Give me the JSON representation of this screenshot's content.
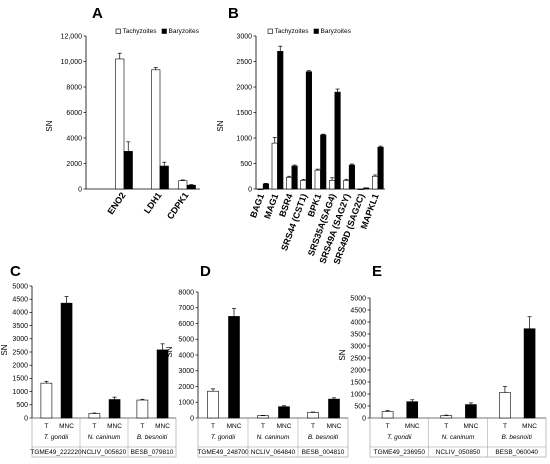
{
  "legend": {
    "tachyzoites": "Tachyzoites",
    "baryzoites": "Baryzoites"
  },
  "chart_data": [
    {
      "id": "A",
      "type": "bar",
      "panel": "A",
      "ylabel": "SN",
      "ylim": [
        0,
        12000
      ],
      "yticks": [
        0,
        2000,
        4000,
        6000,
        8000,
        10000,
        12000
      ],
      "ytick_labels": [
        "0",
        "2000",
        "4000",
        "6000",
        "8000",
        "10,000",
        "12,000"
      ],
      "categories": [
        "ENO2",
        "LDH1",
        "CDPK1"
      ],
      "legend": "top-right",
      "series": [
        {
          "name": "Tachyzoites",
          "values": [
            10200,
            9350,
            650
          ],
          "errors": [
            450,
            180,
            60
          ]
        },
        {
          "name": "Baryzoites",
          "values": [
            2950,
            1800,
            300
          ],
          "errors": [
            750,
            300,
            50
          ]
        }
      ]
    },
    {
      "id": "B",
      "type": "bar",
      "panel": "B",
      "ylabel": "SN",
      "ylim": [
        0,
        3000
      ],
      "yticks": [
        0,
        500,
        1000,
        1500,
        2000,
        2500,
        3000
      ],
      "ytick_labels": [
        "0",
        "500",
        "1000",
        "1500",
        "2000",
        "2500",
        "3000"
      ],
      "categories": [
        "BAG1",
        "MAG1",
        "BSR4",
        "SRS44 (CST1)",
        "BPK1",
        "SRS35A(SAG4)",
        "SRS49A (SAG2Y)",
        "SRS49D (SAG2C)",
        "MAPKL1"
      ],
      "legend": "top-left",
      "series": [
        {
          "name": "Tachyzoites",
          "values": [
            0,
            900,
            230,
            170,
            370,
            170,
            170,
            0,
            250
          ],
          "errors": [
            0,
            110,
            20,
            20,
            20,
            50,
            20,
            0,
            25
          ]
        },
        {
          "name": "Baryzoites",
          "values": [
            100,
            2700,
            450,
            2300,
            1060,
            1900,
            470,
            20,
            820
          ],
          "errors": [
            10,
            100,
            20,
            20,
            15,
            60,
            20,
            3,
            20
          ]
        }
      ]
    },
    {
      "id": "C",
      "type": "bar",
      "panel": "C",
      "ylabel": "SN",
      "ylim": [
        0,
        5000
      ],
      "yticks": [
        0,
        500,
        1000,
        1500,
        2000,
        2500,
        3000,
        3500,
        4000,
        4500,
        5000
      ],
      "ytick_labels": [
        "0",
        "500",
        "1000",
        "1500",
        "2000",
        "2500",
        "3000",
        "3500",
        "4000",
        "4500",
        "5000"
      ],
      "bar_labels": [
        "T",
        "MNC"
      ],
      "groups": [
        {
          "species": "T. gondii",
          "gene": "TGME49_222220",
          "values": [
            1320,
            4350
          ],
          "errors": [
            70,
            250
          ]
        },
        {
          "species": "N. caninum",
          "gene": "NCLIV_005620",
          "values": [
            170,
            700
          ],
          "errors": [
            20,
            90
          ]
        },
        {
          "species": "B. besnoiti",
          "gene": "BESB_079810",
          "values": [
            680,
            2580
          ],
          "errors": [
            30,
            230
          ]
        }
      ]
    },
    {
      "id": "D",
      "type": "bar",
      "panel": "D",
      "ylabel": "SN",
      "ylim": [
        0,
        8000
      ],
      "yticks": [
        0,
        1000,
        2000,
        3000,
        4000,
        5000,
        6000,
        7000,
        8000
      ],
      "ytick_labels": [
        "0",
        "1000",
        "2000",
        "3000",
        "4000",
        "5000",
        "6000",
        "7000",
        "8000"
      ],
      "bar_labels": [
        "T",
        "MNC"
      ],
      "groups": [
        {
          "species": "T. gondii",
          "gene": "TGME49_248700",
          "values": [
            1700,
            6450
          ],
          "errors": [
            150,
            500
          ]
        },
        {
          "species": "N. caninum",
          "gene": "NCLIV_064840",
          "values": [
            150,
            720
          ],
          "errors": [
            20,
            60
          ]
        },
        {
          "species": "B. besnoiti",
          "gene": "BESB_004810",
          "values": [
            350,
            1200
          ],
          "errors": [
            30,
            80
          ]
        }
      ]
    },
    {
      "id": "E",
      "type": "bar",
      "panel": "E",
      "ylabel": "SN",
      "ylim": [
        0,
        5000
      ],
      "yticks": [
        0,
        500,
        1000,
        1500,
        2000,
        2500,
        3000,
        3500,
        4000,
        4500,
        5000
      ],
      "ytick_labels": [
        "0",
        "500",
        "1000",
        "1500",
        "2000",
        "2500",
        "3000",
        "3500",
        "4000",
        "4500",
        "5000"
      ],
      "bar_labels": [
        "T",
        "MNC"
      ],
      "groups": [
        {
          "species": "T. gondii",
          "gene": "TGME49_236950",
          "values": [
            270,
            680
          ],
          "errors": [
            40,
            80
          ]
        },
        {
          "species": "N. caninum",
          "gene": "NCLIV_050850",
          "values": [
            100,
            560
          ],
          "errors": [
            20,
            70
          ]
        },
        {
          "species": "B. besnoiti",
          "gene": "BESB_060040",
          "values": [
            1060,
            3720
          ],
          "errors": [
            250,
            500
          ]
        }
      ]
    }
  ]
}
